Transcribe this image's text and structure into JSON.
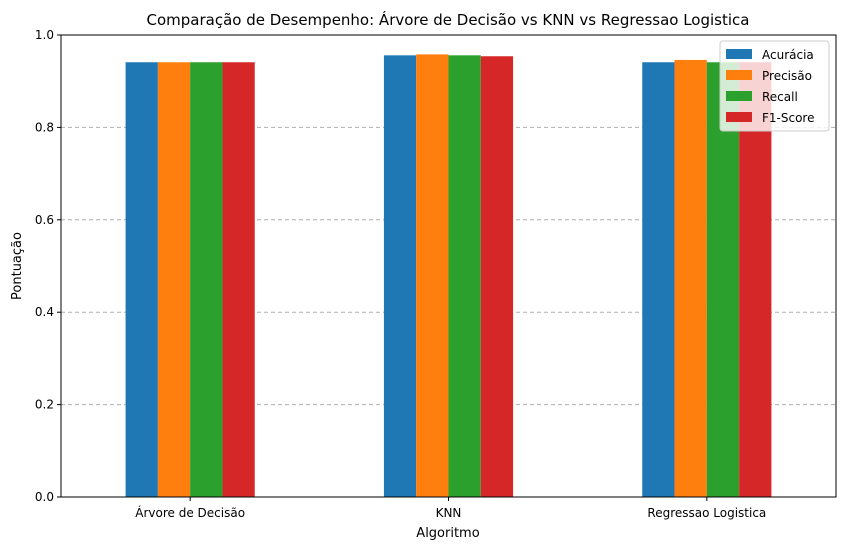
{
  "chart_data": {
    "type": "bar",
    "title": "Comparação de Desempenho: Árvore de Decisão vs KNN vs Regressao Logistica",
    "xlabel": "Algoritmo",
    "ylabel": "Pontuação",
    "ylim": [
      0,
      1.0
    ],
    "yticks": [
      "0.0",
      "0.2",
      "0.4",
      "0.6",
      "0.8",
      "1.0"
    ],
    "grid": "y-dashed",
    "legend_position": "top-right",
    "categories": [
      "Árvore de Decisão",
      "KNN",
      "Regressao Logistica"
    ],
    "series": [
      {
        "name": "Acurácia",
        "color": "#1f77b4",
        "values": [
          0.941,
          0.956,
          0.941
        ]
      },
      {
        "name": "Precisão",
        "color": "#ff7f0e",
        "values": [
          0.941,
          0.958,
          0.946
        ]
      },
      {
        "name": "Recall",
        "color": "#2ca02c",
        "values": [
          0.941,
          0.956,
          0.941
        ]
      },
      {
        "name": "F1-Score",
        "color": "#d62728",
        "values": [
          0.941,
          0.954,
          0.941
        ]
      }
    ]
  }
}
